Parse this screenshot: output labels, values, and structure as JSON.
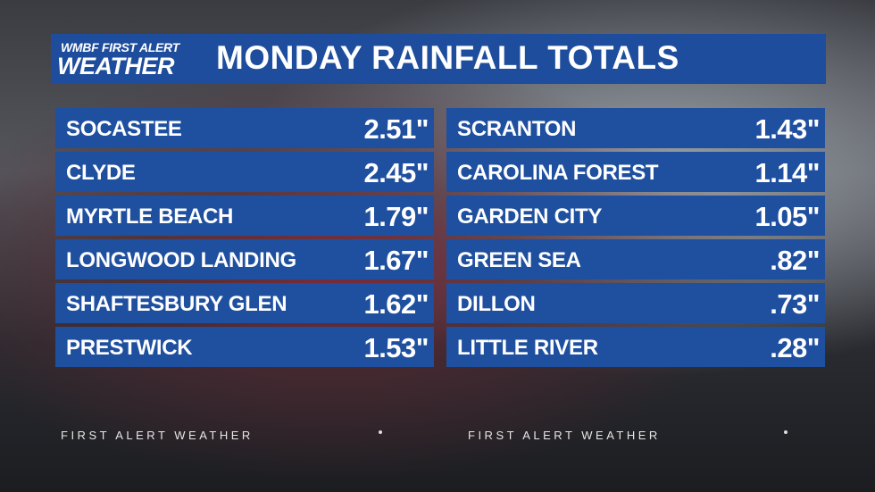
{
  "header": {
    "logo_top": "WMBF FIRST ALERT",
    "logo_bottom": "WEATHER",
    "title": "MONDAY RAINFALL TOTALS"
  },
  "table": {
    "columns": [
      {
        "rows": [
          [
            "SOCASTEE",
            "2.51\""
          ],
          [
            "CLYDE",
            "2.45\""
          ],
          [
            "MYRTLE BEACH",
            "1.79\""
          ],
          [
            "LONGWOOD LANDING",
            "1.67\""
          ],
          [
            "SHAFTESBURY GLEN",
            "1.62\""
          ],
          [
            "PRESTWICK",
            "1.53\""
          ]
        ]
      },
      {
        "rows": [
          [
            "SCRANTON",
            "1.43\""
          ],
          [
            "CAROLINA FOREST",
            "1.14\""
          ],
          [
            "GARDEN CITY",
            "1.05\""
          ],
          [
            "GREEN SEA",
            ".82\""
          ],
          [
            "DILLON",
            ".73\""
          ],
          [
            "LITTLE RIVER",
            ".28\""
          ]
        ]
      }
    ]
  },
  "footer": {
    "items": [
      "FIRST ALERT WEATHER",
      "FIRST ALERT WEATHER"
    ]
  }
}
